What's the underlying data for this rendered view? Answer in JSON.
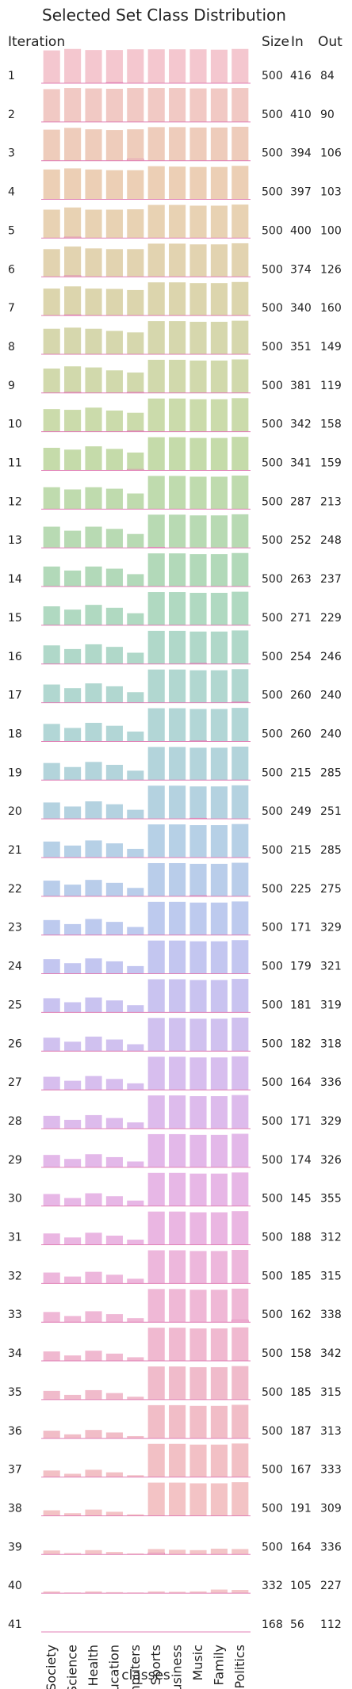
{
  "chart_data": {
    "type": "bar",
    "title": "Selected Set Class Distribution",
    "row_header": "Iteration",
    "columns": {
      "size": "Size",
      "in": "In",
      "out": "Out"
    },
    "xlabel": "classes",
    "categories": [
      "Society",
      "Science",
      "Health",
      "Education",
      "Computers",
      "Sports",
      "Business",
      "Music",
      "Family",
      "Politics"
    ],
    "category_split": 5,
    "fill_colors": [
      "#f4c7cf",
      "#f1c9c4",
      "#eeccbb",
      "#eccfb5",
      "#e8d2b3",
      "#e2d3b0",
      "#dcd5ad",
      "#d6d7ad",
      "#d1d9ac",
      "#cbdbab",
      "#c5dbaa",
      "#bfdbae",
      "#b8dab3",
      "#b2d9b9",
      "#b0d9c1",
      "#b0d8c9",
      "#b1d7d0",
      "#b2d6d6",
      "#b3d4db",
      "#b4d2e0",
      "#b6d0e6",
      "#b9cdea",
      "#bdcaee",
      "#c3c6f0",
      "#c9c3f0",
      "#d0c1ef",
      "#d7beee",
      "#ddbbec",
      "#e3b8e9",
      "#e7b7e6",
      "#eab6e2",
      "#edb7dc",
      "#efb8d6",
      "#f0b9d0",
      "#f0bbcb",
      "#f1bdc7",
      "#f2c0c5",
      "#f3c3c5",
      "#f3c5c7",
      "#f4c6c9",
      "#f4c7cb"
    ],
    "baseline_color": "#e07fb5",
    "rows": [
      {
        "iteration": "1",
        "size": "500",
        "in": "416",
        "out": "84",
        "values": [
          0.9,
          0.94,
          0.91,
          0.91,
          0.93,
          0.93,
          0.93,
          0.93,
          0.92,
          0.94
        ],
        "dark": [
          0,
          0,
          0,
          0.02,
          0,
          0,
          0,
          0,
          0,
          0
        ]
      },
      {
        "iteration": "2",
        "size": "500",
        "in": "410",
        "out": "90",
        "values": [
          0.9,
          0.93,
          0.92,
          0.91,
          0.93,
          0.93,
          0.93,
          0.92,
          0.92,
          0.93
        ],
        "dark": [
          0,
          0,
          0,
          0,
          0,
          0,
          0,
          0,
          0,
          0
        ]
      },
      {
        "iteration": "3",
        "size": "500",
        "in": "394",
        "out": "106",
        "values": [
          0.85,
          0.9,
          0.86,
          0.84,
          0.86,
          0.92,
          0.92,
          0.91,
          0.91,
          0.93
        ],
        "dark": [
          0,
          0,
          0,
          0,
          0.04,
          0,
          0,
          0,
          0,
          0
        ]
      },
      {
        "iteration": "4",
        "size": "500",
        "in": "397",
        "out": "103",
        "values": [
          0.82,
          0.85,
          0.82,
          0.8,
          0.8,
          0.91,
          0.9,
          0.89,
          0.89,
          0.92
        ],
        "dark": [
          0,
          0,
          0,
          0,
          0,
          0,
          0,
          0,
          0,
          0
        ]
      },
      {
        "iteration": "5",
        "size": "500",
        "in": "400",
        "out": "100",
        "values": [
          0.78,
          0.84,
          0.78,
          0.78,
          0.79,
          0.91,
          0.91,
          0.89,
          0.89,
          0.92
        ],
        "dark": [
          0,
          0.03,
          0,
          0,
          0,
          0,
          0,
          0,
          0,
          0
        ]
      },
      {
        "iteration": "6",
        "size": "500",
        "in": "374",
        "out": "126",
        "values": [
          0.76,
          0.83,
          0.78,
          0.76,
          0.76,
          0.91,
          0.91,
          0.89,
          0.89,
          0.92
        ],
        "dark": [
          0,
          0.03,
          0,
          0,
          0,
          0,
          0,
          0,
          0,
          0
        ]
      },
      {
        "iteration": "7",
        "size": "500",
        "in": "340",
        "out": "160",
        "values": [
          0.74,
          0.8,
          0.74,
          0.73,
          0.7,
          0.91,
          0.91,
          0.89,
          0.89,
          0.92
        ],
        "dark": [
          0,
          0.02,
          0,
          0,
          0,
          0,
          0,
          0,
          0,
          0
        ]
      },
      {
        "iteration": "8",
        "size": "500",
        "in": "351",
        "out": "149",
        "values": [
          0.7,
          0.73,
          0.7,
          0.64,
          0.6,
          0.91,
          0.91,
          0.89,
          0.89,
          0.92
        ],
        "dark": [
          0,
          0,
          0,
          0,
          0,
          0,
          0,
          0,
          0,
          0
        ]
      },
      {
        "iteration": "9",
        "size": "500",
        "in": "381",
        "out": "119",
        "values": [
          0.67,
          0.73,
          0.7,
          0.62,
          0.56,
          0.91,
          0.91,
          0.89,
          0.89,
          0.92
        ],
        "dark": [
          0,
          0.02,
          0,
          0,
          0.02,
          0,
          0,
          0,
          0,
          0
        ]
      },
      {
        "iteration": "10",
        "size": "500",
        "in": "342",
        "out": "158",
        "values": [
          0.62,
          0.6,
          0.66,
          0.58,
          0.52,
          0.91,
          0.91,
          0.89,
          0.89,
          0.92
        ],
        "dark": [
          0,
          0,
          0,
          0,
          0.02,
          0,
          0,
          0,
          0,
          0
        ]
      },
      {
        "iteration": "11",
        "size": "500",
        "in": "341",
        "out": "159",
        "values": [
          0.62,
          0.57,
          0.66,
          0.59,
          0.49,
          0.91,
          0.91,
          0.89,
          0.89,
          0.92
        ],
        "dark": [
          0,
          0,
          0,
          0,
          0.03,
          0,
          0,
          0,
          0,
          0
        ]
      },
      {
        "iteration": "12",
        "size": "500",
        "in": "287",
        "out": "213",
        "values": [
          0.6,
          0.54,
          0.6,
          0.56,
          0.43,
          0.91,
          0.91,
          0.89,
          0.89,
          0.92
        ],
        "dark": [
          0,
          0,
          0,
          0,
          0,
          0,
          0,
          0,
          0,
          0
        ]
      },
      {
        "iteration": "13",
        "size": "500",
        "in": "252",
        "out": "248",
        "values": [
          0.58,
          0.47,
          0.58,
          0.52,
          0.38,
          0.91,
          0.91,
          0.89,
          0.89,
          0.92
        ],
        "dark": [
          0,
          0,
          0,
          0,
          0,
          0.02,
          0,
          0,
          0,
          0
        ]
      },
      {
        "iteration": "14",
        "size": "500",
        "in": "263",
        "out": "237",
        "values": [
          0.55,
          0.44,
          0.55,
          0.49,
          0.34,
          0.91,
          0.91,
          0.89,
          0.89,
          0.92
        ],
        "dark": [
          0,
          0,
          0,
          0,
          0,
          0,
          0,
          0,
          0,
          0
        ]
      },
      {
        "iteration": "15",
        "size": "500",
        "in": "271",
        "out": "229",
        "values": [
          0.52,
          0.43,
          0.56,
          0.48,
          0.33,
          0.91,
          0.91,
          0.89,
          0.89,
          0.92
        ],
        "dark": [
          0,
          0,
          0,
          0,
          0,
          0,
          0,
          0,
          0,
          0
        ]
      },
      {
        "iteration": "16",
        "size": "500",
        "in": "254",
        "out": "246",
        "values": [
          0.51,
          0.41,
          0.54,
          0.47,
          0.31,
          0.91,
          0.91,
          0.89,
          0.89,
          0.92
        ],
        "dark": [
          0,
          0,
          0,
          0,
          0,
          0,
          0,
          0.02,
          0,
          0
        ]
      },
      {
        "iteration": "17",
        "size": "500",
        "in": "260",
        "out": "240",
        "values": [
          0.5,
          0.4,
          0.53,
          0.45,
          0.29,
          0.91,
          0.91,
          0.89,
          0.89,
          0.92
        ],
        "dark": [
          0,
          0,
          0,
          0,
          0,
          0,
          0,
          0,
          0,
          0.02
        ]
      },
      {
        "iteration": "18",
        "size": "500",
        "in": "260",
        "out": "240",
        "values": [
          0.48,
          0.37,
          0.51,
          0.43,
          0.27,
          0.91,
          0.91,
          0.89,
          0.89,
          0.92
        ],
        "dark": [
          0,
          0,
          0,
          0,
          0,
          0,
          0,
          0.02,
          0,
          0
        ]
      },
      {
        "iteration": "19",
        "size": "500",
        "in": "215",
        "out": "285",
        "values": [
          0.47,
          0.36,
          0.5,
          0.42,
          0.26,
          0.91,
          0.91,
          0.89,
          0.89,
          0.92
        ],
        "dark": [
          0,
          0,
          0,
          0,
          0,
          0,
          0,
          0,
          0,
          0
        ]
      },
      {
        "iteration": "20",
        "size": "500",
        "in": "249",
        "out": "251",
        "values": [
          0.45,
          0.34,
          0.48,
          0.4,
          0.25,
          0.91,
          0.91,
          0.89,
          0.89,
          0.92
        ],
        "dark": [
          0,
          0,
          0,
          0,
          0,
          0,
          0,
          0.02,
          0,
          0
        ]
      },
      {
        "iteration": "21",
        "size": "500",
        "in": "215",
        "out": "285",
        "values": [
          0.44,
          0.33,
          0.47,
          0.39,
          0.24,
          0.91,
          0.91,
          0.89,
          0.89,
          0.92
        ],
        "dark": [
          0,
          0,
          0,
          0,
          0,
          0,
          0,
          0,
          0,
          0
        ]
      },
      {
        "iteration": "22",
        "size": "500",
        "in": "225",
        "out": "275",
        "values": [
          0.43,
          0.32,
          0.45,
          0.37,
          0.23,
          0.91,
          0.91,
          0.89,
          0.89,
          0.92
        ],
        "dark": [
          0,
          0,
          0,
          0,
          0,
          0,
          0,
          0.02,
          0,
          0
        ]
      },
      {
        "iteration": "23",
        "size": "500",
        "in": "171",
        "out": "329",
        "values": [
          0.41,
          0.3,
          0.44,
          0.36,
          0.22,
          0.91,
          0.91,
          0.89,
          0.89,
          0.92
        ],
        "dark": [
          0,
          0,
          0,
          0,
          0,
          0,
          0,
          0,
          0,
          0
        ]
      },
      {
        "iteration": "24",
        "size": "500",
        "in": "179",
        "out": "321",
        "values": [
          0.4,
          0.29,
          0.42,
          0.34,
          0.21,
          0.91,
          0.91,
          0.89,
          0.89,
          0.92
        ],
        "dark": [
          0,
          0,
          0,
          0,
          0,
          0,
          0,
          0,
          0,
          0
        ]
      },
      {
        "iteration": "25",
        "size": "500",
        "in": "181",
        "out": "319",
        "values": [
          0.39,
          0.28,
          0.41,
          0.33,
          0.2,
          0.91,
          0.91,
          0.89,
          0.89,
          0.92
        ],
        "dark": [
          0,
          0,
          0,
          0,
          0,
          0,
          0,
          0,
          0,
          0
        ]
      },
      {
        "iteration": "26",
        "size": "500",
        "in": "182",
        "out": "318",
        "values": [
          0.37,
          0.26,
          0.4,
          0.32,
          0.19,
          0.91,
          0.91,
          0.89,
          0.89,
          0.92
        ],
        "dark": [
          0,
          0,
          0,
          0,
          0,
          0,
          0,
          0,
          0,
          0
        ]
      },
      {
        "iteration": "27",
        "size": "500",
        "in": "164",
        "out": "336",
        "values": [
          0.36,
          0.25,
          0.38,
          0.3,
          0.18,
          0.91,
          0.91,
          0.89,
          0.89,
          0.92
        ],
        "dark": [
          0,
          0,
          0,
          0,
          0,
          0,
          0,
          0,
          0,
          0
        ]
      },
      {
        "iteration": "28",
        "size": "500",
        "in": "171",
        "out": "329",
        "values": [
          0.35,
          0.24,
          0.37,
          0.29,
          0.17,
          0.91,
          0.91,
          0.89,
          0.89,
          0.92
        ],
        "dark": [
          0,
          0,
          0,
          0,
          0,
          0,
          0,
          0,
          0,
          0
        ]
      },
      {
        "iteration": "29",
        "size": "500",
        "in": "174",
        "out": "326",
        "values": [
          0.34,
          0.23,
          0.36,
          0.28,
          0.16,
          0.91,
          0.91,
          0.89,
          0.89,
          0.92
        ],
        "dark": [
          0,
          0,
          0,
          0,
          0,
          0,
          0,
          0,
          0,
          0
        ]
      },
      {
        "iteration": "30",
        "size": "500",
        "in": "145",
        "out": "355",
        "values": [
          0.33,
          0.22,
          0.35,
          0.27,
          0.15,
          0.91,
          0.91,
          0.89,
          0.89,
          0.92
        ],
        "dark": [
          0,
          0,
          0,
          0,
          0,
          0,
          0,
          0,
          0,
          0
        ]
      },
      {
        "iteration": "31",
        "size": "500",
        "in": "188",
        "out": "312",
        "values": [
          0.31,
          0.2,
          0.33,
          0.25,
          0.14,
          0.91,
          0.91,
          0.89,
          0.89,
          0.92
        ],
        "dark": [
          0,
          0,
          0,
          0,
          0,
          0,
          0,
          0,
          0,
          0
        ]
      },
      {
        "iteration": "32",
        "size": "500",
        "in": "185",
        "out": "315",
        "values": [
          0.3,
          0.19,
          0.32,
          0.24,
          0.13,
          0.91,
          0.91,
          0.89,
          0.89,
          0.92
        ],
        "dark": [
          0,
          0,
          0,
          0,
          0,
          0,
          0,
          0,
          0,
          0
        ]
      },
      {
        "iteration": "33",
        "size": "500",
        "in": "162",
        "out": "338",
        "values": [
          0.28,
          0.17,
          0.3,
          0.22,
          0.11,
          0.91,
          0.91,
          0.89,
          0.89,
          0.92
        ],
        "dark": [
          0,
          0,
          0,
          0,
          0,
          0,
          0,
          0,
          0,
          0.06
        ]
      },
      {
        "iteration": "34",
        "size": "500",
        "in": "158",
        "out": "342",
        "values": [
          0.26,
          0.15,
          0.28,
          0.2,
          0.1,
          0.91,
          0.91,
          0.89,
          0.89,
          0.92
        ],
        "dark": [
          0,
          0,
          0,
          0,
          0,
          0,
          0,
          0,
          0,
          0
        ]
      },
      {
        "iteration": "35",
        "size": "500",
        "in": "185",
        "out": "315",
        "values": [
          0.24,
          0.13,
          0.26,
          0.18,
          0.08,
          0.91,
          0.91,
          0.89,
          0.89,
          0.92
        ],
        "dark": [
          0,
          0,
          0,
          0,
          0,
          0,
          0,
          0,
          0,
          0
        ]
      },
      {
        "iteration": "36",
        "size": "500",
        "in": "187",
        "out": "313",
        "values": [
          0.21,
          0.11,
          0.23,
          0.16,
          0.06,
          0.91,
          0.91,
          0.89,
          0.89,
          0.92
        ],
        "dark": [
          0,
          0,
          0,
          0,
          0,
          0,
          0,
          0,
          0,
          0
        ]
      },
      {
        "iteration": "37",
        "size": "500",
        "in": "167",
        "out": "333",
        "values": [
          0.18,
          0.09,
          0.2,
          0.13,
          0.05,
          0.91,
          0.91,
          0.89,
          0.89,
          0.92
        ],
        "dark": [
          0,
          0,
          0,
          0,
          0,
          0,
          0,
          0,
          0,
          0
        ]
      },
      {
        "iteration": "38",
        "size": "500",
        "in": "191",
        "out": "309",
        "values": [
          0.15,
          0.07,
          0.17,
          0.11,
          0.04,
          0.91,
          0.91,
          0.89,
          0.89,
          0.92
        ],
        "dark": [
          0,
          0,
          0,
          0,
          0,
          0,
          0,
          0,
          0,
          0
        ]
      },
      {
        "iteration": "39",
        "size": "500",
        "in": "164",
        "out": "336",
        "values": [
          0.11,
          0.04,
          0.12,
          0.07,
          0.03,
          0.15,
          0.13,
          0.12,
          0.16,
          0.15
        ],
        "dark": [
          0,
          0,
          0,
          0,
          0,
          0.04,
          0,
          0,
          0,
          0
        ]
      },
      {
        "iteration": "40",
        "size": "332",
        "in": "105",
        "out": "227",
        "values": [
          0.05,
          0.02,
          0.05,
          0.03,
          0.02,
          0.05,
          0.04,
          0.05,
          0.1,
          0.09
        ],
        "dark": [
          0,
          0,
          0,
          0,
          0,
          0,
          0,
          0,
          0,
          0
        ]
      },
      {
        "iteration": "41",
        "size": "168",
        "in": "56",
        "out": "112",
        "values": [
          0.0,
          0.0,
          0.0,
          0.0,
          0.0,
          0.0,
          0.0,
          0.0,
          0.0,
          0.0
        ],
        "dark": [
          0,
          0,
          0,
          0,
          0,
          0,
          0,
          0,
          0,
          0
        ]
      }
    ]
  }
}
